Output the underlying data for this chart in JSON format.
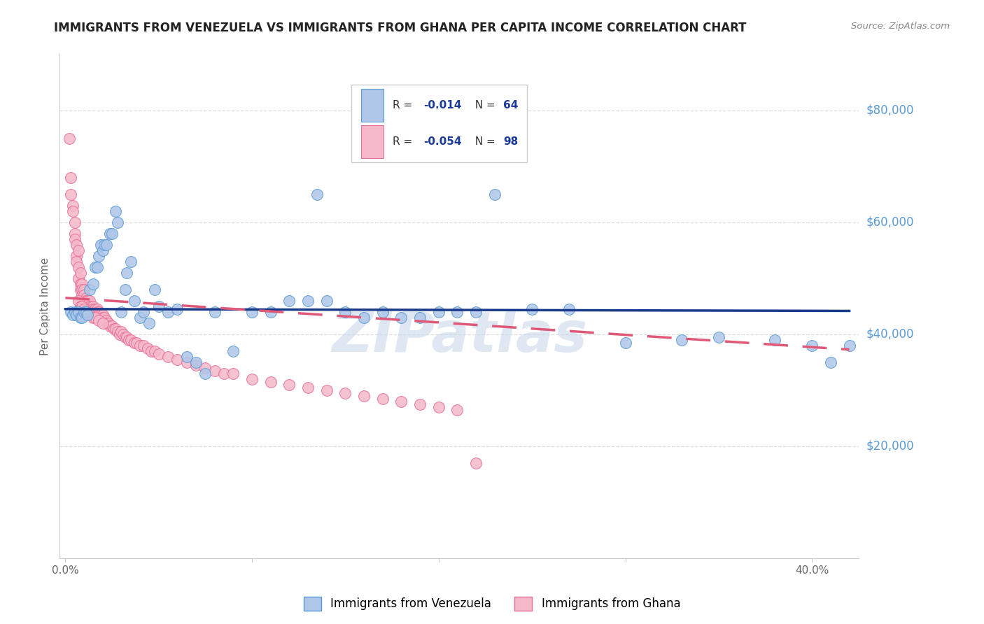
{
  "title": "IMMIGRANTS FROM VENEZUELA VS IMMIGRANTS FROM GHANA PER CAPITA INCOME CORRELATION CHART",
  "source": "Source: ZipAtlas.com",
  "ylabel": "Per Capita Income",
  "ytick_values": [
    20000,
    40000,
    60000,
    80000
  ],
  "ytick_dollar_labels": [
    "$20,000",
    "$40,000",
    "$60,000",
    "$80,000"
  ],
  "ylim": [
    0,
    90000
  ],
  "xlim": [
    -0.003,
    0.425
  ],
  "xtick_positions": [
    0.0,
    0.1,
    0.2,
    0.3,
    0.4
  ],
  "xtick_labels": [
    "0.0%",
    "",
    "",
    "",
    "40.0%"
  ],
  "watermark": "ZIPatlas",
  "blue_scatter_color": "#aec6e8",
  "blue_edge_color": "#5b9bd5",
  "pink_scatter_color": "#f4b8c8",
  "pink_edge_color": "#e8709a",
  "blue_line_color": "#1a3a8a",
  "pink_line_color": "#e05878",
  "title_color": "#222222",
  "source_color": "#888888",
  "axis_color": "#cccccc",
  "ylabel_color": "#666666",
  "dollar_label_color": "#5b9bd5",
  "xtick_color": "#666666",
  "watermark_color": "#c8d8ea",
  "grid_color": "#dddddd",
  "ven_N": 64,
  "gha_N": 98,
  "ven_R": -0.014,
  "gha_R": -0.054,
  "ven_line_intercept": 44500,
  "ven_line_slope": -800,
  "gha_line_intercept": 46500,
  "gha_line_slope": -22000,
  "ven_x": [
    0.003,
    0.004,
    0.005,
    0.006,
    0.007,
    0.008,
    0.009,
    0.01,
    0.011,
    0.012,
    0.013,
    0.015,
    0.016,
    0.017,
    0.018,
    0.019,
    0.02,
    0.021,
    0.022,
    0.024,
    0.025,
    0.027,
    0.028,
    0.03,
    0.032,
    0.033,
    0.035,
    0.037,
    0.04,
    0.042,
    0.045,
    0.048,
    0.05,
    0.055,
    0.06,
    0.065,
    0.07,
    0.075,
    0.08,
    0.09,
    0.1,
    0.11,
    0.12,
    0.13,
    0.135,
    0.14,
    0.15,
    0.16,
    0.17,
    0.18,
    0.19,
    0.2,
    0.21,
    0.22,
    0.23,
    0.25,
    0.27,
    0.3,
    0.33,
    0.35,
    0.38,
    0.4,
    0.41,
    0.42
  ],
  "ven_y": [
    44000,
    43500,
    44000,
    43500,
    44000,
    43000,
    43000,
    44000,
    44000,
    43500,
    48000,
    49000,
    52000,
    52000,
    54000,
    56000,
    55000,
    56000,
    56000,
    58000,
    58000,
    62000,
    60000,
    44000,
    48000,
    51000,
    53000,
    46000,
    43000,
    44000,
    42000,
    48000,
    45000,
    44000,
    44500,
    36000,
    35000,
    33000,
    44000,
    37000,
    44000,
    44000,
    46000,
    46000,
    65000,
    46000,
    44000,
    43000,
    44000,
    43000,
    43000,
    44000,
    44000,
    44000,
    65000,
    44500,
    44500,
    38500,
    39000,
    39500,
    39000,
    38000,
    35000,
    38000
  ],
  "gha_x": [
    0.002,
    0.003,
    0.003,
    0.004,
    0.004,
    0.005,
    0.005,
    0.005,
    0.006,
    0.006,
    0.006,
    0.007,
    0.007,
    0.007,
    0.008,
    0.008,
    0.008,
    0.009,
    0.009,
    0.009,
    0.01,
    0.01,
    0.01,
    0.011,
    0.011,
    0.012,
    0.012,
    0.013,
    0.013,
    0.014,
    0.014,
    0.015,
    0.015,
    0.016,
    0.016,
    0.017,
    0.017,
    0.018,
    0.018,
    0.019,
    0.019,
    0.02,
    0.02,
    0.021,
    0.022,
    0.022,
    0.023,
    0.024,
    0.025,
    0.026,
    0.027,
    0.028,
    0.029,
    0.03,
    0.031,
    0.032,
    0.033,
    0.034,
    0.035,
    0.037,
    0.038,
    0.04,
    0.042,
    0.044,
    0.046,
    0.048,
    0.05,
    0.055,
    0.06,
    0.065,
    0.07,
    0.075,
    0.08,
    0.085,
    0.09,
    0.1,
    0.11,
    0.12,
    0.13,
    0.14,
    0.15,
    0.16,
    0.17,
    0.18,
    0.19,
    0.2,
    0.21,
    0.22,
    0.007,
    0.008,
    0.009,
    0.01,
    0.012,
    0.013,
    0.015,
    0.016,
    0.018,
    0.02
  ],
  "gha_y": [
    75000,
    68000,
    65000,
    63000,
    62000,
    60000,
    58000,
    57000,
    56000,
    54000,
    53000,
    55000,
    52000,
    50000,
    51000,
    49000,
    48000,
    49000,
    48000,
    47000,
    48000,
    47000,
    46000,
    46500,
    46000,
    46000,
    45500,
    46000,
    45000,
    45000,
    44500,
    45000,
    44500,
    44500,
    44000,
    44500,
    44000,
    44000,
    43500,
    43500,
    43000,
    43500,
    43000,
    43000,
    42500,
    42000,
    42000,
    41500,
    41500,
    41000,
    41000,
    40500,
    40000,
    40500,
    40000,
    39500,
    39500,
    39000,
    39000,
    38500,
    38500,
    38000,
    38000,
    37500,
    37000,
    37000,
    36500,
    36000,
    35500,
    35000,
    34500,
    34000,
    33500,
    33000,
    33000,
    32000,
    31500,
    31000,
    30500,
    30000,
    29500,
    29000,
    28500,
    28000,
    27500,
    27000,
    26500,
    17000,
    46000,
    45000,
    45000,
    44500,
    44000,
    43500,
    43000,
    43000,
    42500,
    42000
  ]
}
